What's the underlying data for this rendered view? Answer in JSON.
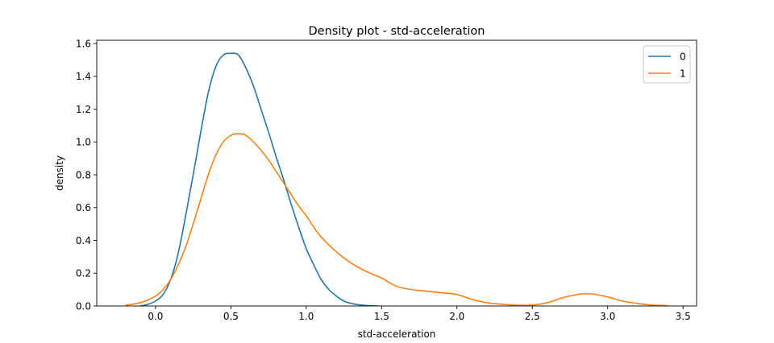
{
  "chart_data": {
    "type": "line",
    "title": "Density plot - std-acceleration",
    "xlabel": "std-acceleration",
    "ylabel": "density",
    "xlim": [
      -0.39,
      3.59
    ],
    "ylim": [
      0,
      1.62
    ],
    "xticks": [
      0.0,
      0.5,
      1.0,
      1.5,
      2.0,
      2.5,
      3.0,
      3.5
    ],
    "xtick_labels": [
      "0.0",
      "0.5",
      "1.0",
      "1.5",
      "2.0",
      "2.5",
      "3.0",
      "3.5"
    ],
    "yticks": [
      0.0,
      0.2,
      0.4,
      0.6,
      0.8,
      1.0,
      1.2,
      1.4,
      1.6
    ],
    "ytick_labels": [
      "0.0",
      "0.2",
      "0.4",
      "0.6",
      "0.8",
      "1.0",
      "1.2",
      "1.4",
      "1.6"
    ],
    "grid": false,
    "legend_position": "top-right",
    "series": [
      {
        "name": "0",
        "color": "#1f77b4",
        "x": [
          -0.1,
          -0.05,
          0.0,
          0.05,
          0.1,
          0.15,
          0.2,
          0.25,
          0.3,
          0.35,
          0.4,
          0.45,
          0.5,
          0.55,
          0.6,
          0.65,
          0.7,
          0.75,
          0.8,
          0.85,
          0.9,
          0.95,
          1.0,
          1.05,
          1.1,
          1.15,
          1.2,
          1.25,
          1.3,
          1.35,
          1.4,
          1.45,
          1.48
        ],
        "y": [
          0.0,
          0.01,
          0.03,
          0.07,
          0.16,
          0.32,
          0.55,
          0.8,
          1.06,
          1.3,
          1.46,
          1.53,
          1.54,
          1.53,
          1.45,
          1.34,
          1.2,
          1.06,
          0.91,
          0.77,
          0.62,
          0.48,
          0.35,
          0.25,
          0.16,
          0.1,
          0.06,
          0.03,
          0.015,
          0.007,
          0.003,
          0.001,
          0.0
        ]
      },
      {
        "name": "1",
        "color": "#ff7f0e",
        "x": [
          -0.2,
          -0.1,
          0.0,
          0.05,
          0.1,
          0.15,
          0.2,
          0.25,
          0.3,
          0.35,
          0.4,
          0.45,
          0.5,
          0.55,
          0.6,
          0.65,
          0.7,
          0.75,
          0.8,
          0.85,
          0.9,
          0.95,
          1.0,
          1.05,
          1.1,
          1.2,
          1.3,
          1.4,
          1.5,
          1.6,
          1.7,
          1.8,
          1.9,
          2.0,
          2.1,
          2.2,
          2.3,
          2.4,
          2.5,
          2.6,
          2.7,
          2.8,
          2.85,
          2.9,
          3.0,
          3.1,
          3.2,
          3.3,
          3.4
        ],
        "y": [
          0.005,
          0.02,
          0.06,
          0.1,
          0.16,
          0.25,
          0.36,
          0.5,
          0.65,
          0.8,
          0.92,
          1.0,
          1.04,
          1.05,
          1.04,
          1.0,
          0.95,
          0.89,
          0.82,
          0.75,
          0.68,
          0.61,
          0.55,
          0.48,
          0.42,
          0.33,
          0.26,
          0.21,
          0.17,
          0.12,
          0.1,
          0.09,
          0.08,
          0.07,
          0.04,
          0.02,
          0.01,
          0.005,
          0.005,
          0.02,
          0.05,
          0.07,
          0.075,
          0.073,
          0.055,
          0.03,
          0.015,
          0.005,
          0.002
        ]
      }
    ]
  }
}
